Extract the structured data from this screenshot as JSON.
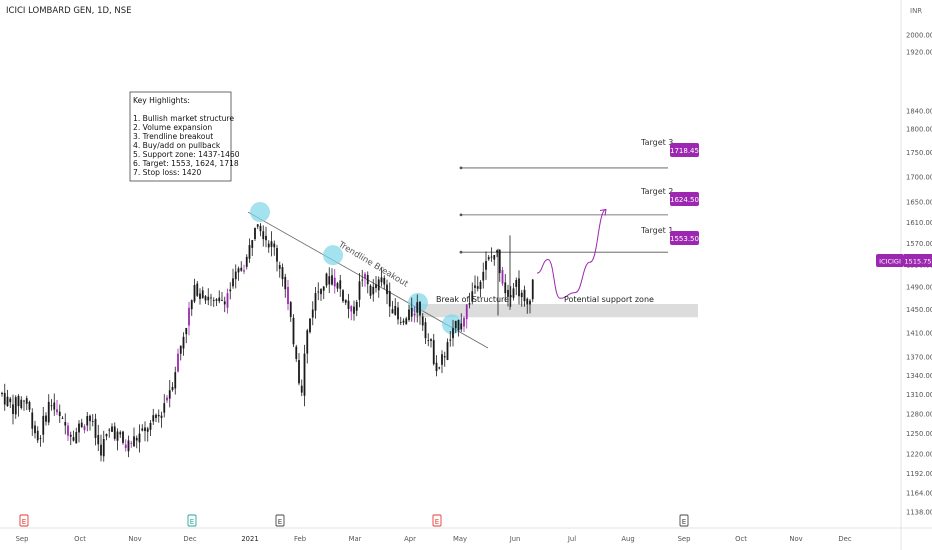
{
  "header": {
    "title": "ICICI LOMBARD GEN, 1D, NSE",
    "currency": "INR"
  },
  "colors": {
    "background": "#ffffff",
    "candle": "#1a1a1a",
    "accent_purple": "#9c27b0",
    "highlight_cyan": "#7fd6e8",
    "zone": "#dcdcdc",
    "axis_text": "#555555"
  },
  "highlights_box": {
    "title": "Key Highlights:",
    "lines": [
      "1. Bullish market structure",
      "2. Volume expansion",
      "3. Trendline breakout",
      "4. Buy/add on pullback",
      "5. Support zone: 1437-1460",
      "6. Target: 1553, 1624, 1718",
      "7. Stop loss: 1420"
    ]
  },
  "annotations": {
    "trendline_label": "Trendline Breakout",
    "bos_label": "Break of Structure",
    "zone_label": "Potential support zone"
  },
  "targets": [
    {
      "label": "Target 1",
      "value": "1553.50"
    },
    {
      "label": "Target 2",
      "value": "1624.50"
    },
    {
      "label": "Target 3",
      "value": "1718.45"
    }
  ],
  "last_price": {
    "symbol": "ICICIGI",
    "value": "1515.75"
  },
  "chart_data": {
    "type": "candlestick",
    "y_axis_scale": "log",
    "y_ticks": [
      "2000.00",
      "1920.00",
      "1840.00",
      "1800.00",
      "1750.00",
      "1700.00",
      "1650.00",
      "1610.00",
      "1570.00",
      "1530.00",
      "1490.00",
      "1450.00",
      "1410.00",
      "1370.00",
      "1340.00",
      "1310.00",
      "1280.00",
      "1250.00",
      "1220.00",
      "1192.00",
      "1164.00",
      "1138.00"
    ],
    "y_tick_values": [
      2000,
      1920,
      1840,
      1800,
      1750,
      1700,
      1650,
      1610,
      1570,
      1530,
      1490,
      1450,
      1410,
      1370,
      1340,
      1310,
      1280,
      1250,
      1220,
      1192,
      1164,
      1138
    ],
    "x_ticks": [
      "Sep",
      "Oct",
      "Nov",
      "Dec",
      "2021",
      "Feb",
      "Mar",
      "Apr",
      "May",
      "Jun",
      "Jul",
      "Aug",
      "Sep",
      "Oct",
      "Nov",
      "Dec"
    ],
    "earnings_markers": [
      {
        "month": "Sep",
        "letter": "E",
        "color": "#e53935"
      },
      {
        "month": "Dec",
        "letter": "E",
        "color": "#26a69a"
      },
      {
        "month": "Feb",
        "letter": "E",
        "color": "#444444"
      },
      {
        "month": "Apr",
        "letter": "E",
        "color": "#e53935"
      },
      {
        "month": "Sep",
        "letter": "E",
        "color": "#444444"
      }
    ],
    "support_zone": [
      1437,
      1460
    ],
    "target_levels": [
      1553.5,
      1624.5,
      1718.45
    ],
    "last_value": 1515.75,
    "trendline": {
      "from": {
        "month": "Jan",
        "value": 1630
      },
      "to": {
        "month": "May",
        "value": 1385
      }
    },
    "touch_points": [
      {
        "month": "Jan",
        "value": 1630
      },
      {
        "month": "Feb",
        "value": 1548
      },
      {
        "month": "Apr",
        "value": 1462
      },
      {
        "month": "May",
        "value": 1425
      }
    ],
    "waypoints": [
      [
        0,
        1315
      ],
      [
        12,
        1290
      ],
      [
        25,
        1305
      ],
      [
        38,
        1240
      ],
      [
        50,
        1300
      ],
      [
        62,
        1265
      ],
      [
        75,
        1250
      ],
      [
        88,
        1280
      ],
      [
        100,
        1225
      ],
      [
        112,
        1260
      ],
      [
        125,
        1230
      ],
      [
        138,
        1245
      ],
      [
        150,
        1260
      ],
      [
        160,
        1280
      ],
      [
        172,
        1330
      ],
      [
        180,
        1385
      ],
      [
        188,
        1440
      ],
      [
        196,
        1490
      ],
      [
        205,
        1480
      ],
      [
        215,
        1455
      ],
      [
        228,
        1480
      ],
      [
        240,
        1520
      ],
      [
        248,
        1545
      ],
      [
        256,
        1625
      ],
      [
        265,
        1585
      ],
      [
        275,
        1555
      ],
      [
        283,
        1510
      ],
      [
        290,
        1430
      ],
      [
        296,
        1380
      ],
      [
        301,
        1310
      ],
      [
        306,
        1400
      ],
      [
        314,
        1470
      ],
      [
        322,
        1495
      ],
      [
        332,
        1510
      ],
      [
        342,
        1480
      ],
      [
        352,
        1440
      ],
      [
        362,
        1510
      ],
      [
        372,
        1480
      ],
      [
        382,
        1500
      ],
      [
        392,
        1460
      ],
      [
        400,
        1420
      ],
      [
        408,
        1435
      ],
      [
        418,
        1460
      ],
      [
        428,
        1400
      ],
      [
        438,
        1350
      ],
      [
        448,
        1390
      ],
      [
        458,
        1425
      ],
      [
        466,
        1450
      ],
      [
        476,
        1500
      ],
      [
        486,
        1530
      ],
      [
        496,
        1555
      ],
      [
        506,
        1480
      ],
      [
        516,
        1500
      ],
      [
        526,
        1450
      ],
      [
        534,
        1510
      ]
    ],
    "projection_path": [
      [
        537,
        1515
      ],
      [
        548,
        1540
      ],
      [
        560,
        1470
      ],
      [
        575,
        1480
      ],
      [
        590,
        1535
      ],
      [
        606,
        1635
      ]
    ]
  }
}
